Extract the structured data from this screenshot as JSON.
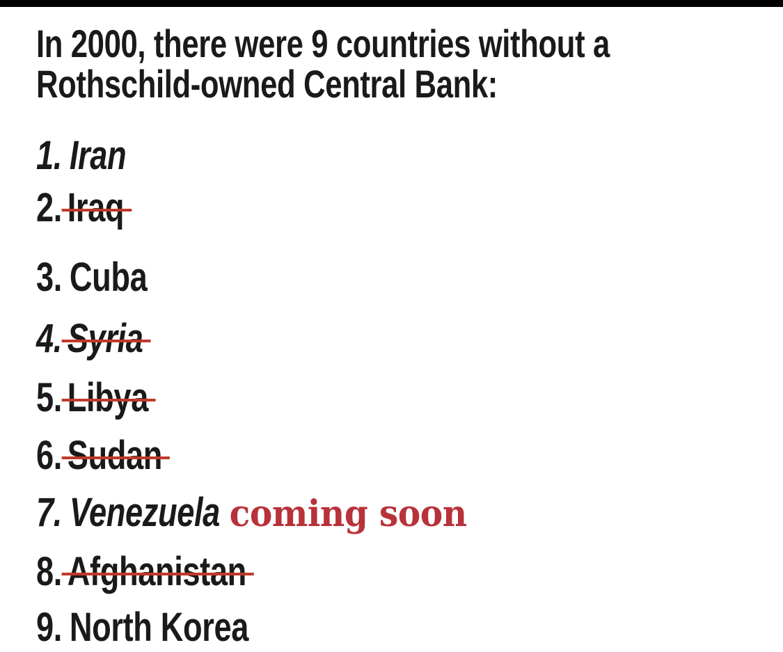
{
  "title_line1": "In 2000, there were 9 countries without a",
  "title_line2": "Rothschild-owned Central Bank:",
  "items": [
    {
      "num": "1.",
      "name": "Iran",
      "struck": false,
      "italic": true
    },
    {
      "num": "2.",
      "name": "Iraq",
      "struck": true,
      "italic": false
    },
    {
      "num": "3.",
      "name": "Cuba",
      "struck": false,
      "italic": false
    },
    {
      "num": "4.",
      "name": "Syria",
      "struck": true,
      "italic": true
    },
    {
      "num": "5.",
      "name": "Libya",
      "struck": true,
      "italic": false
    },
    {
      "num": "6.",
      "name": "Sudan",
      "struck": true,
      "italic": false
    },
    {
      "num": "7.",
      "name": "Venezuela",
      "struck": false,
      "italic": true,
      "note": "coming soon"
    },
    {
      "num": "8.",
      "name": "Afghanistan",
      "struck": true,
      "italic": false
    },
    {
      "num": "9.",
      "name": "North Korea",
      "struck": false,
      "italic": false
    }
  ],
  "colors": {
    "text": "#1a1a1a",
    "strike": "#c0392b",
    "note": "#b8323a",
    "background": "#ffffff"
  }
}
